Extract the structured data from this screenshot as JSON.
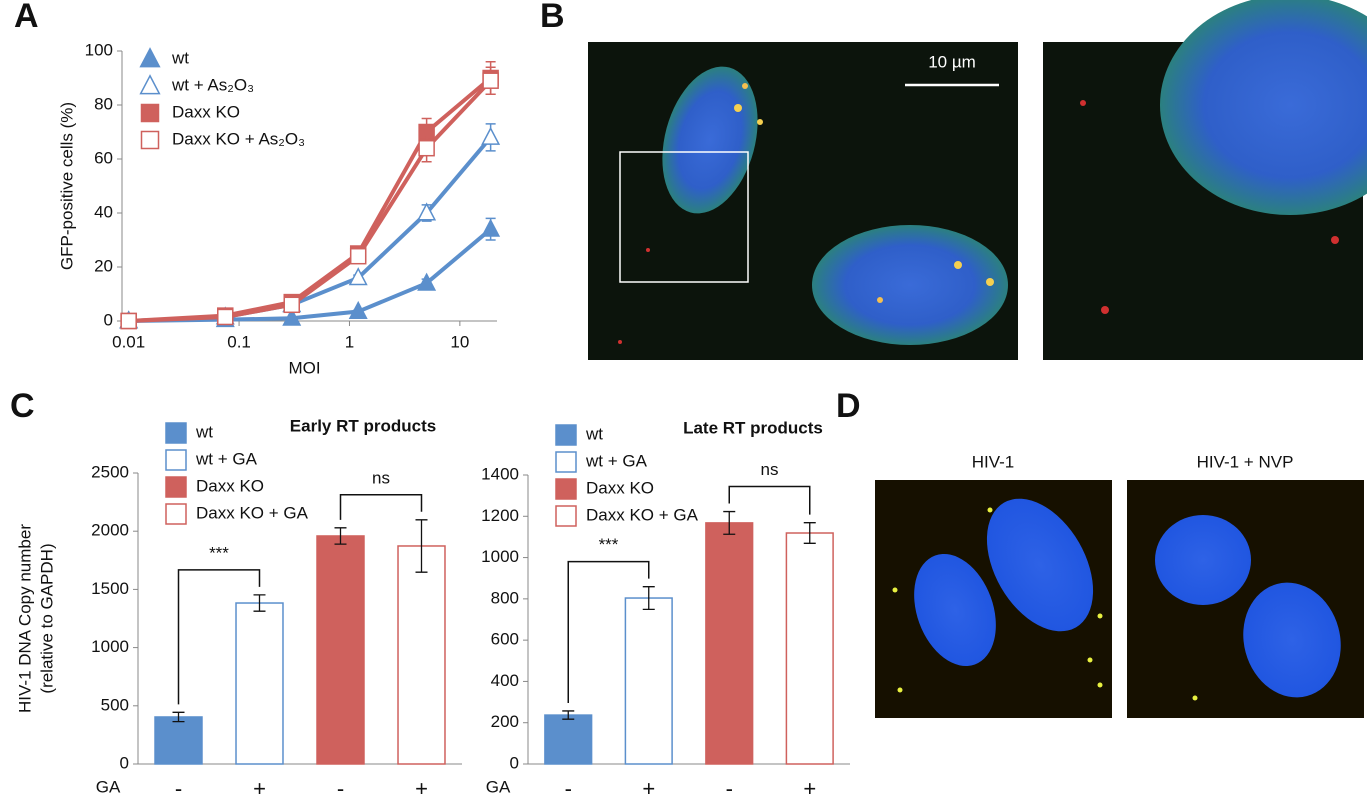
{
  "panels": [
    "A",
    "B",
    "C",
    "D"
  ],
  "images": {
    "scale_bar": "10 µm",
    "captions": [
      "HIV-1",
      "HIV-1 + NVP"
    ]
  },
  "chart_data": [
    {
      "type": "line",
      "xlabel": "MOI",
      "ylabel": "GFP-positive cells (%)",
      "xscale": "log",
      "x": [
        0.01,
        0.075,
        0.3,
        1.2,
        5,
        19
      ],
      "xlim": [
        0.0087,
        21.7
      ],
      "xticks": [
        0.01,
        0.1,
        1,
        10
      ],
      "ylim": [
        0,
        100
      ],
      "yticks": [
        0,
        20,
        40,
        60,
        80,
        100
      ],
      "series": [
        {
          "name": "wt",
          "color": "#5b8fcc",
          "marker": "triangle",
          "filled": true,
          "values": [
            0,
            0.5,
            1,
            3.5,
            14,
            34
          ],
          "errors": [
            0,
            0,
            0,
            0.5,
            1.5,
            4
          ]
        },
        {
          "name": "wt + As₂O₃",
          "color": "#5b8fcc",
          "marker": "triangle",
          "filled": false,
          "values": [
            0,
            1.5,
            6,
            16,
            40,
            68
          ],
          "errors": [
            0,
            0,
            0.5,
            1,
            3,
            5
          ]
        },
        {
          "name": "Daxx KO",
          "color": "#cf615d",
          "marker": "square",
          "filled": true,
          "values": [
            0,
            2,
            7,
            25,
            70,
            90
          ],
          "errors": [
            0,
            0,
            1,
            1.5,
            5,
            6
          ]
        },
        {
          "name": "Daxx KO + As₂O₃",
          "color": "#cf615d",
          "marker": "square",
          "filled": false,
          "values": [
            0,
            1.5,
            6,
            24,
            64,
            89
          ],
          "errors": [
            0,
            0,
            1,
            1.5,
            5,
            5
          ]
        }
      ]
    },
    {
      "type": "bar",
      "title": "Early RT products",
      "ylabel": [
        "HIV-1 DNA Copy number",
        "(relative to GAPDH)"
      ],
      "xlabel": "GA",
      "categories": [
        "-",
        "+",
        "-",
        "+"
      ],
      "legend": [
        "wt",
        "wt + GA",
        "Daxx KO",
        "Daxx KO + GA"
      ],
      "colors": [
        "#5b8fcc",
        "#5b8fcc",
        "#cf615d",
        "#cf615d"
      ],
      "filled": [
        true,
        false,
        true,
        false
      ],
      "values": [
        404,
        1383,
        1959,
        1873
      ],
      "errors": [
        40,
        70,
        70,
        225
      ],
      "ylim": [
        0,
        2500
      ],
      "yticks": [
        0,
        500,
        1000,
        1500,
        2000,
        2500
      ],
      "annotations": [
        {
          "text": "***",
          "between": [
            0,
            1
          ]
        },
        {
          "text": "ns",
          "between": [
            2,
            3
          ]
        }
      ]
    },
    {
      "type": "bar",
      "title": "Late RT products",
      "xlabel": "GA",
      "categories": [
        "-",
        "+",
        "-",
        "+"
      ],
      "legend": [
        "wt",
        "wt + GA",
        "Daxx KO",
        "Daxx KO + GA"
      ],
      "colors": [
        "#5b8fcc",
        "#5b8fcc",
        "#cf615d",
        "#cf615d"
      ],
      "filled": [
        true,
        false,
        true,
        false
      ],
      "values": [
        237,
        804,
        1168,
        1119
      ],
      "errors": [
        20,
        55,
        55,
        50
      ],
      "ylim": [
        0,
        1400
      ],
      "yticks": [
        0,
        200,
        400,
        600,
        800,
        1000,
        1200,
        1400
      ],
      "annotations": [
        {
          "text": "***",
          "between": [
            0,
            1
          ]
        },
        {
          "text": "ns",
          "between": [
            2,
            3
          ]
        }
      ]
    }
  ]
}
